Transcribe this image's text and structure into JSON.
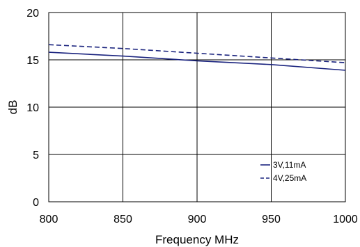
{
  "chart_data": {
    "type": "line",
    "title": "",
    "xlabel": "Frequency MHz",
    "ylabel": "dB",
    "xlim": [
      800,
      1000
    ],
    "ylim": [
      0,
      20
    ],
    "xticks": [
      "800",
      "850",
      "900",
      "950",
      "1000"
    ],
    "yticks": [
      "0",
      "5",
      "10",
      "15",
      "20"
    ],
    "grid": true,
    "legend_position": "bottom-right",
    "series": [
      {
        "name": "3V,11mA",
        "style": "solid",
        "color": "#1a237e",
        "x": [
          800,
          850,
          900,
          950,
          1000
        ],
        "y": [
          15.8,
          15.4,
          14.9,
          14.5,
          13.9
        ]
      },
      {
        "name": "4V,25mA",
        "style": "dashed",
        "color": "#1a237e",
        "x": [
          800,
          850,
          900,
          950,
          1000
        ],
        "y": [
          16.6,
          16.2,
          15.7,
          15.2,
          14.7
        ]
      }
    ]
  }
}
